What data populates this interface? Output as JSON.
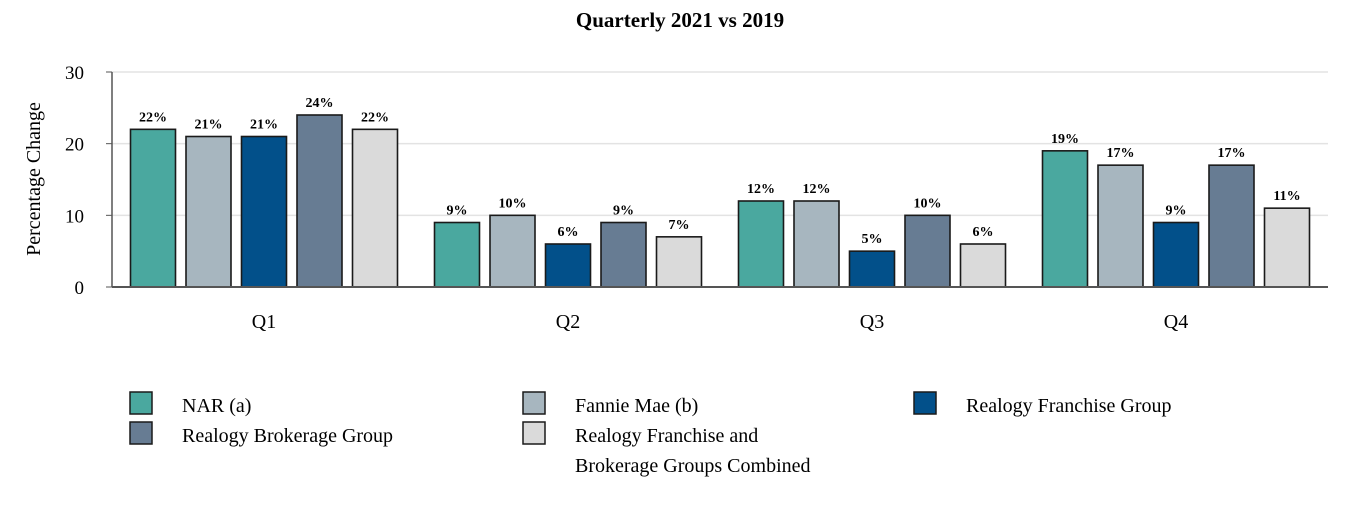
{
  "chart_data": {
    "type": "bar",
    "title": "Quarterly 2021 vs 2019",
    "xlabel": "",
    "ylabel": "Percentage Change",
    "ylim": [
      0,
      30
    ],
    "yticks": [
      "0",
      "10",
      "20",
      "30"
    ],
    "grid": true,
    "legend_position": "bottom",
    "categories": [
      "Q1",
      "Q2",
      "Q3",
      "Q4"
    ],
    "series": [
      {
        "name": "NAR (a)",
        "color": "#4aa89f",
        "values": [
          22,
          9,
          12,
          19
        ],
        "labels": [
          "22%",
          "9%",
          "12%",
          "19%"
        ]
      },
      {
        "name": "Fannie Mae (b)",
        "color": "#a7b6bf",
        "values": [
          21,
          10,
          12,
          17
        ],
        "labels": [
          "21%",
          "10%",
          "12%",
          "17%"
        ]
      },
      {
        "name": "Realogy Franchise Group",
        "color": "#02508a",
        "values": [
          21,
          6,
          5,
          9
        ],
        "labels": [
          "21%",
          "6%",
          "5%",
          "9%"
        ]
      },
      {
        "name": "Realogy Brokerage Group",
        "color": "#677c93",
        "values": [
          24,
          9,
          10,
          17
        ],
        "labels": [
          "24%",
          "9%",
          "10%",
          "17%"
        ]
      },
      {
        "name": "Realogy Franchise and Brokerage Groups Combined",
        "name_lines": [
          "Realogy Franchise and",
          "Brokerage Groups Combined"
        ],
        "color": "#dadada",
        "values": [
          22,
          7,
          6,
          11
        ],
        "labels": [
          "22%",
          "7%",
          "6%",
          "11%"
        ]
      }
    ]
  }
}
